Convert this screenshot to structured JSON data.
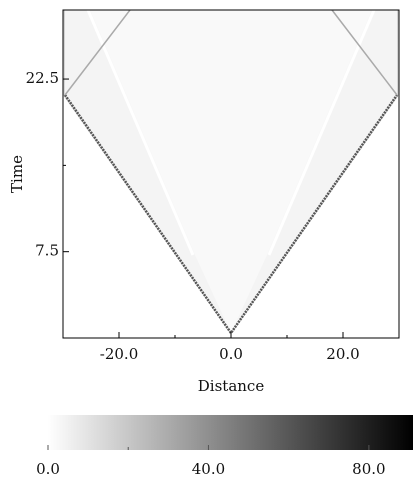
{
  "chart_data": {
    "type": "heatmap",
    "x_label": "Distance",
    "y_label": "Time",
    "xlim": [
      -30,
      30
    ],
    "ylim": [
      0,
      28.5
    ],
    "xticks": [
      {
        "value": -20,
        "label": "-20.0"
      },
      {
        "value": 0,
        "label": "0.0"
      },
      {
        "value": 20,
        "label": "20.0"
      }
    ],
    "xminor": [
      -10,
      10
    ],
    "yticks": [
      7.5,
      22.5
    ],
    "yminor": [
      15
    ],
    "colorbar": {
      "lim": [
        0,
        91
      ],
      "ticks": [
        {
          "value": 0,
          "label": "0.0"
        },
        {
          "value": 40,
          "label": "40.0"
        },
        {
          "value": 80,
          "label": "80.0"
        }
      ],
      "minor": [
        20,
        60
      ],
      "colors": [
        "#ffffff",
        "#000000"
      ]
    }
  }
}
